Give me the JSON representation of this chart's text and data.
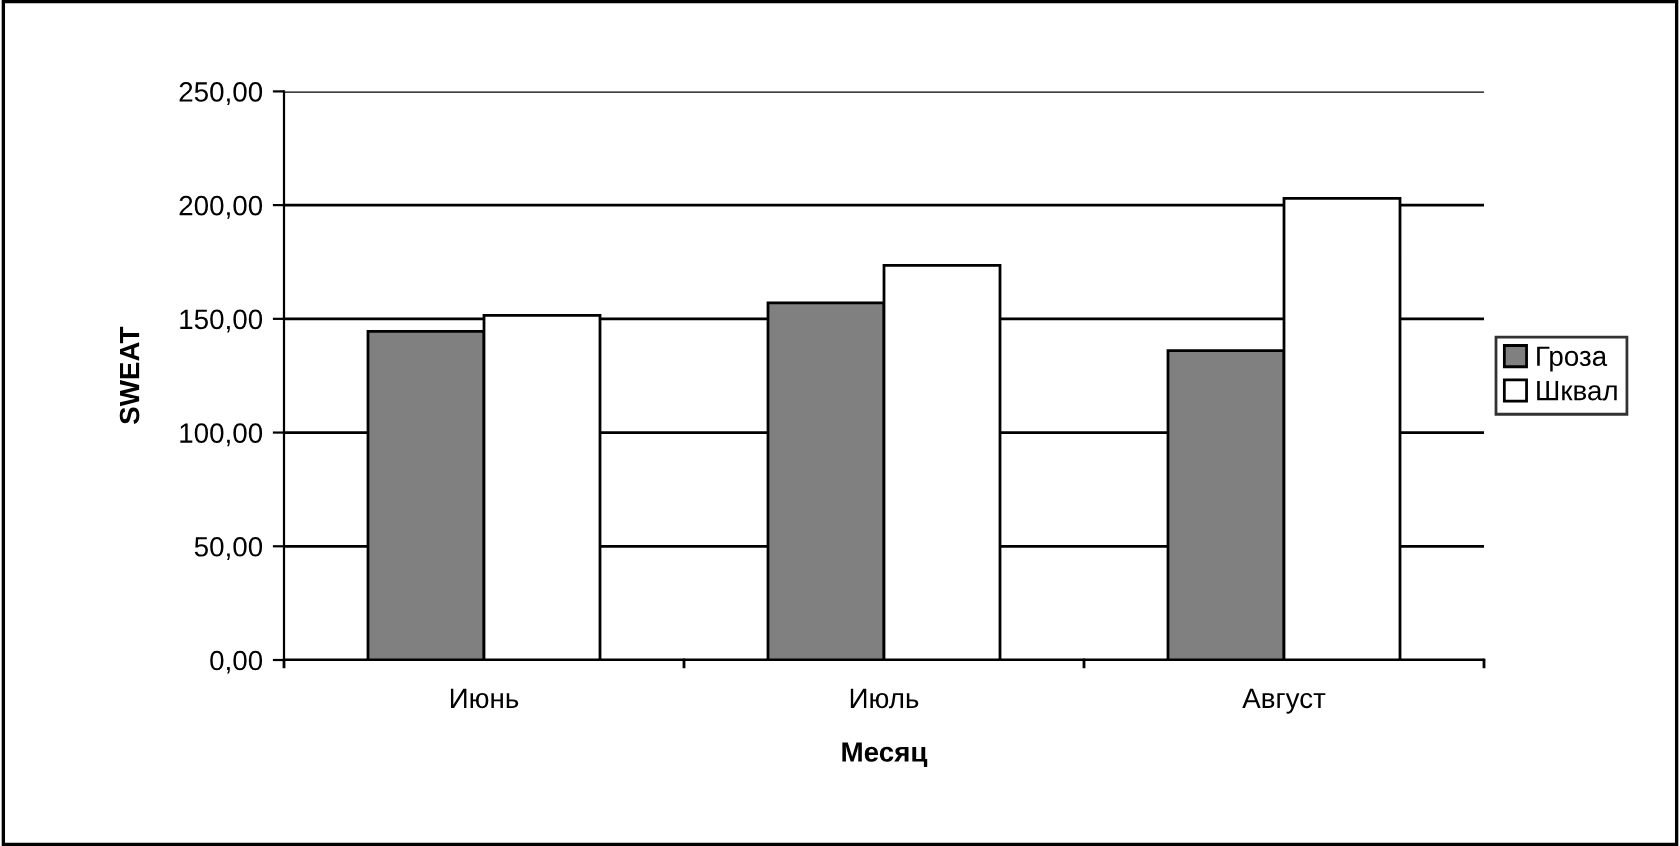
{
  "chart_data": {
    "type": "bar",
    "xlabel": "Месяц",
    "ylabel": "SWEAT",
    "categories": [
      "Июнь",
      "Июль",
      "Август"
    ],
    "series": [
      {
        "name": "Гроза",
        "color": "#808080",
        "values": [
          144.5,
          157,
          136
        ]
      },
      {
        "name": "Шквал",
        "color": "#ffffff",
        "values": [
          151.5,
          173.5,
          203
        ]
      }
    ],
    "ylim": [
      0,
      250
    ],
    "yticks": [
      {
        "value": 0,
        "label": "0,00"
      },
      {
        "value": 50,
        "label": "50,00"
      },
      {
        "value": 100,
        "label": "100,00"
      },
      {
        "value": 150,
        "label": "150,00"
      },
      {
        "value": 200,
        "label": "200,00"
      },
      {
        "value": 250,
        "label": "250,00"
      }
    ],
    "grid": "y",
    "legend": "right"
  }
}
